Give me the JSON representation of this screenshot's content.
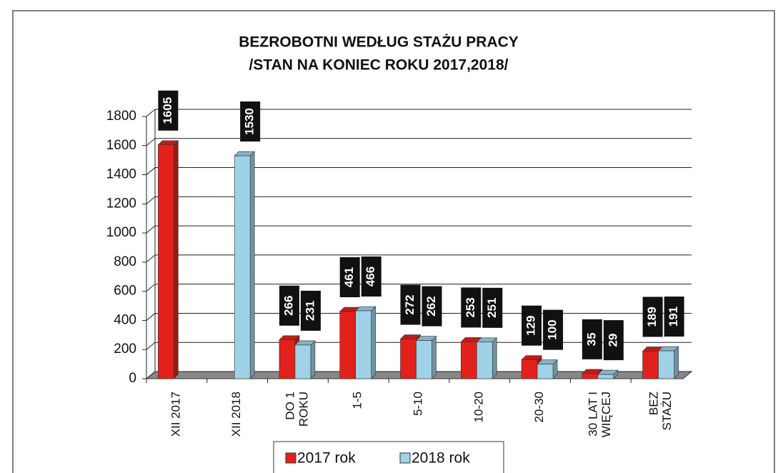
{
  "chart_data": {
    "type": "bar",
    "title": "BEZROBOTNI WEDŁUG STAŻU PRACY",
    "subtitle": "/STAN NA KONIEC ROKU 2017,2018/",
    "categories": [
      "XII 2017",
      "XII 2018",
      "DO 1\nROKU",
      "1-5",
      "5-10",
      "10-20",
      "20-30",
      "30 LAT I\nWIĘCEJ",
      "BEZ\nSTAŻU"
    ],
    "series": [
      {
        "name": "2017 rok",
        "color": "#e3211c",
        "values": [
          1605,
          null,
          266,
          461,
          272,
          253,
          129,
          35,
          189
        ]
      },
      {
        "name": "2018 rok",
        "color": "#9fd2e6",
        "values": [
          null,
          1530,
          231,
          466,
          262,
          251,
          100,
          29,
          191
        ]
      }
    ],
    "ylim": [
      0,
      1800
    ],
    "yticks": [
      0,
      200,
      400,
      600,
      800,
      1000,
      1200,
      1400,
      1600,
      1800
    ],
    "grid": true,
    "legend": "bottom"
  }
}
